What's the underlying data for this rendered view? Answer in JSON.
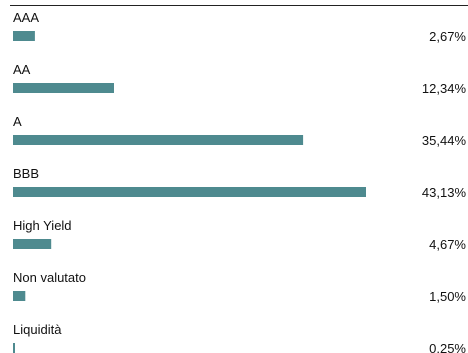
{
  "chart_data": {
    "type": "bar",
    "orientation": "horizontal",
    "categories": [
      "AAA",
      "AA",
      "A",
      "BBB",
      "High Yield",
      "Non valutato",
      "Liquidità"
    ],
    "values": [
      2.67,
      12.34,
      35.44,
      43.13,
      4.67,
      1.5,
      0.25
    ],
    "value_labels": [
      "2,67%",
      "12,34%",
      "35,44%",
      "43,13%",
      "4,67%",
      "1,50%",
      "0,25%"
    ],
    "xlim": [
      0,
      50
    ],
    "bar_color": "#4e8a8f",
    "grid": false,
    "legend": "none"
  }
}
